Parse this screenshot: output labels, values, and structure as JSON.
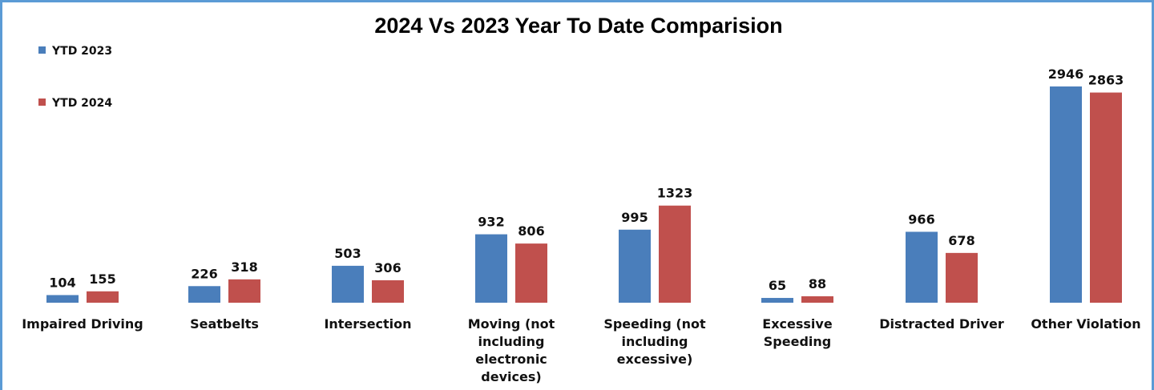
{
  "chart_data": {
    "type": "bar",
    "title": "2024 Vs 2023 Year To Date Comparision",
    "categories": [
      [
        "Impaired Driving"
      ],
      [
        "Seatbelts"
      ],
      [
        "Intersection"
      ],
      [
        "Moving (not",
        "including",
        "electronic",
        "devices)"
      ],
      [
        "Speeding (not",
        "including",
        "excessive)"
      ],
      [
        "Excessive",
        "Speeding"
      ],
      [
        "Distracted Driver"
      ],
      [
        "Other Violation"
      ]
    ],
    "series": [
      {
        "name": "YTD 2023",
        "color": "#4a7ebb",
        "values": [
          104,
          226,
          503,
          932,
          995,
          65,
          966,
          2946
        ]
      },
      {
        "name": "YTD 2024",
        "color": "#c0504d",
        "values": [
          155,
          318,
          306,
          806,
          1323,
          88,
          678,
          2863
        ]
      }
    ],
    "ylim": [
      0,
      3000
    ],
    "grid": false,
    "legend_position": "top-left",
    "data_labels": true,
    "xlabel": "",
    "ylabel": ""
  }
}
